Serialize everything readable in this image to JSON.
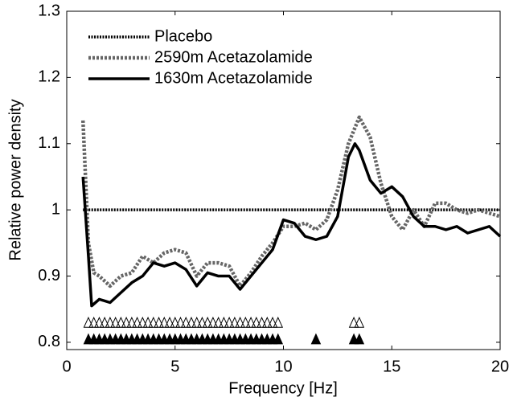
{
  "chart_data": {
    "type": "line",
    "xlabel": "Frequency [Hz]",
    "ylabel": "Relative power density",
    "xlim": [
      0,
      20
    ],
    "ylim": [
      0.789,
      1.3
    ],
    "xticks": [
      0,
      5,
      10,
      15,
      20
    ],
    "yticks": [
      0.8,
      0.9,
      1,
      1.1,
      1.2,
      1.3
    ],
    "grid": false,
    "legend": "upper left",
    "series": [
      {
        "name": "Placebo",
        "color": "#000000",
        "style": "dotted",
        "x": [
          0.75,
          20
        ],
        "values": [
          1,
          1
        ]
      },
      {
        "name": "2590m Acetazolamide",
        "color": "#666666",
        "style": "dotted-thick",
        "x": [
          0.75,
          1,
          1.25,
          1.5,
          2,
          2.5,
          3,
          3.5,
          4,
          4.5,
          5,
          5.5,
          6,
          6.5,
          7,
          7.5,
          8,
          8.5,
          9,
          9.5,
          10,
          10.5,
          11,
          11.5,
          12,
          12.5,
          13,
          13.5,
          14,
          14.5,
          15,
          15.5,
          16,
          16.5,
          17,
          17.5,
          18,
          18.5,
          19,
          19.5,
          20
        ],
        "values": [
          1.135,
          0.95,
          0.905,
          0.9,
          0.885,
          0.9,
          0.905,
          0.93,
          0.92,
          0.935,
          0.94,
          0.935,
          0.9,
          0.92,
          0.92,
          0.915,
          0.885,
          0.905,
          0.93,
          0.95,
          0.975,
          0.975,
          0.98,
          0.97,
          0.985,
          1.03,
          1.1,
          1.14,
          1.11,
          1.04,
          0.99,
          0.97,
          1.0,
          0.975,
          1.01,
          1.01,
          1.0,
          0.995,
          1.0,
          0.995,
          0.99
        ]
      },
      {
        "name": "1630m Acetazolamide",
        "color": "#000000",
        "style": "solid",
        "x": [
          0.75,
          1,
          1.15,
          1.5,
          2,
          2.5,
          3,
          3.5,
          4,
          4.5,
          5,
          5.5,
          6,
          6.5,
          7,
          7.5,
          8,
          8.5,
          9,
          9.5,
          10,
          10.5,
          11,
          11.5,
          12,
          12.5,
          13,
          13.3,
          13.5,
          14,
          14.5,
          15,
          15.5,
          16,
          16.5,
          17,
          17.5,
          18,
          18.5,
          19,
          19.5,
          20
        ],
        "values": [
          1.05,
          0.93,
          0.855,
          0.865,
          0.86,
          0.875,
          0.89,
          0.9,
          0.92,
          0.915,
          0.92,
          0.91,
          0.885,
          0.905,
          0.9,
          0.9,
          0.88,
          0.9,
          0.92,
          0.94,
          0.985,
          0.98,
          0.96,
          0.955,
          0.96,
          0.99,
          1.08,
          1.1,
          1.09,
          1.045,
          1.025,
          1.035,
          1.02,
          0.99,
          0.975,
          0.975,
          0.97,
          0.975,
          0.965,
          0.97,
          0.975,
          0.96
        ]
      }
    ],
    "markers": [
      {
        "marker": "open-triangle",
        "color": "#000000",
        "y": 0.83,
        "x": [
          1,
          1.25,
          1.5,
          1.75,
          2,
          2.25,
          2.5,
          2.75,
          3,
          3.25,
          3.5,
          3.75,
          4,
          4.25,
          4.5,
          4.75,
          5,
          5.25,
          5.5,
          5.75,
          6,
          6.25,
          6.5,
          6.75,
          7,
          7.25,
          7.5,
          7.75,
          8,
          8.25,
          8.5,
          8.75,
          9,
          9.25,
          9.5,
          9.75,
          13.25,
          13.5
        ]
      },
      {
        "marker": "filled-triangle",
        "color": "#000000",
        "y": 0.805,
        "x": [
          1,
          1.25,
          1.5,
          1.75,
          2,
          2.25,
          2.5,
          2.75,
          3,
          3.25,
          3.5,
          3.75,
          4,
          4.25,
          4.5,
          4.75,
          5,
          5.25,
          5.5,
          5.75,
          6,
          6.25,
          6.5,
          6.75,
          7,
          7.25,
          7.5,
          7.75,
          8,
          8.25,
          8.5,
          8.75,
          9,
          9.25,
          9.5,
          9.75,
          11.5,
          13.25,
          13.5
        ]
      }
    ]
  }
}
